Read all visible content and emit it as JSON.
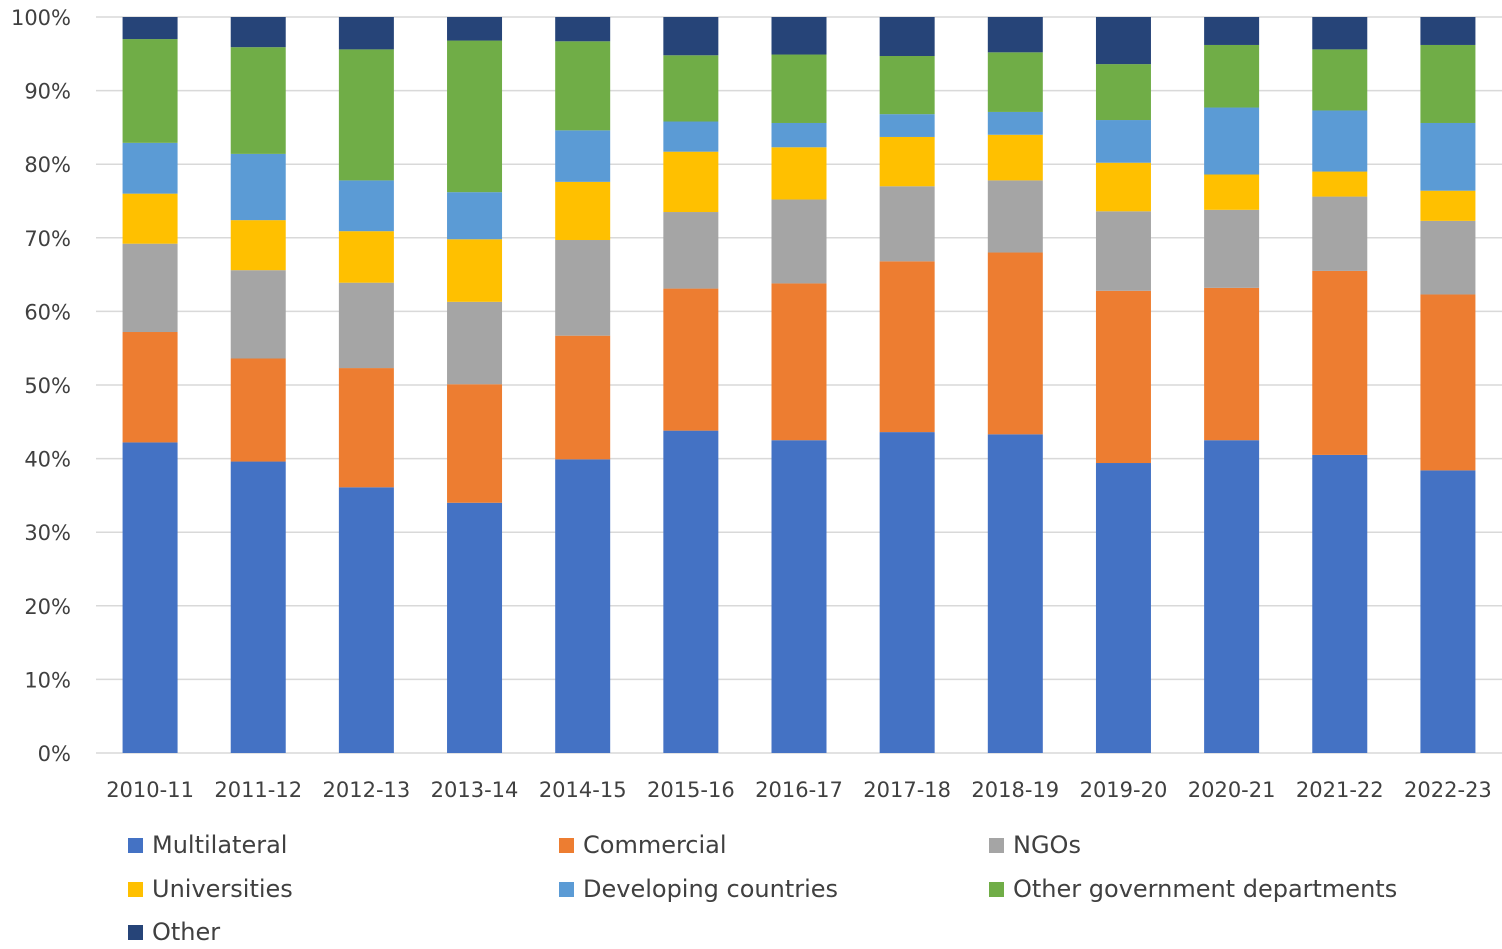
{
  "chart_data": {
    "type": "bar",
    "stacked": true,
    "percent_stacked": true,
    "categories": [
      "2010-11",
      "2011-12",
      "2012-13",
      "2013-14",
      "2014-15",
      "2015-16",
      "2016-17",
      "2017-18",
      "2018-19",
      "2019-20",
      "2020-21",
      "2021-22",
      "2022-23"
    ],
    "y_ticks": [
      "0%",
      "10%",
      "20%",
      "30%",
      "40%",
      "50%",
      "60%",
      "70%",
      "80%",
      "90%",
      "100%"
    ],
    "ylim": [
      0,
      100
    ],
    "grid": true,
    "legend_position": "bottom",
    "series": [
      {
        "name": "Multilateral",
        "color": "#4472c4",
        "values": [
          42.2,
          39.6,
          36.1,
          34.0,
          39.9,
          43.8,
          42.5,
          43.6,
          43.3,
          39.4,
          42.5,
          40.5,
          38.4
        ]
      },
      {
        "name": "Commercial",
        "color": "#ed7d31",
        "values": [
          15.0,
          14.0,
          16.2,
          16.1,
          16.8,
          19.3,
          21.3,
          23.2,
          24.7,
          23.4,
          20.7,
          25.0,
          23.9
        ]
      },
      {
        "name": "NGOs",
        "color": "#a5a5a5",
        "values": [
          12.0,
          12.0,
          11.6,
          11.2,
          13.0,
          10.4,
          11.4,
          10.2,
          9.8,
          10.8,
          10.6,
          10.1,
          10.0
        ]
      },
      {
        "name": "Universities",
        "color": "#ffc000",
        "values": [
          6.8,
          6.8,
          7.0,
          8.5,
          7.9,
          8.2,
          7.1,
          6.7,
          6.2,
          6.6,
          4.8,
          3.4,
          4.1
        ]
      },
      {
        "name": "Developing countries",
        "color": "#5b9bd5",
        "values": [
          6.9,
          9.0,
          6.9,
          6.4,
          7.0,
          4.1,
          3.3,
          3.1,
          3.1,
          5.8,
          9.1,
          8.3,
          9.2
        ]
      },
      {
        "name": "Other government departments",
        "color": "#70ad47",
        "values": [
          14.1,
          14.5,
          17.8,
          20.6,
          12.1,
          9.0,
          9.3,
          7.9,
          8.1,
          7.6,
          8.5,
          8.3,
          10.6
        ]
      },
      {
        "name": "Other",
        "color": "#264478",
        "values": [
          3.0,
          4.1,
          4.4,
          3.2,
          3.3,
          5.2,
          5.1,
          5.3,
          4.8,
          6.4,
          3.8,
          4.4,
          3.8
        ]
      }
    ]
  }
}
